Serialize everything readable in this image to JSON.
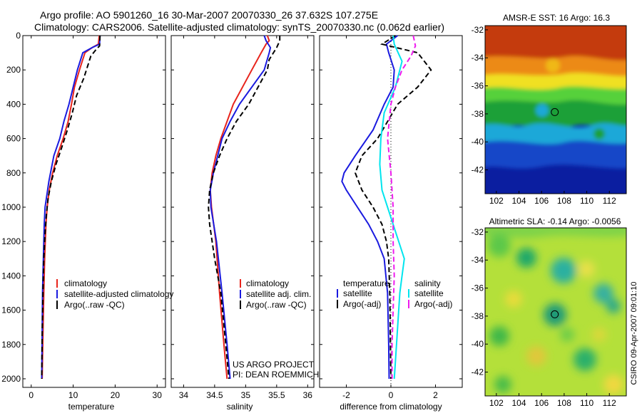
{
  "header": {
    "line1": "Argo profile: AO 5901260_16 30-Mar-2007 20070330_26 37.632S 107.275E",
    "line2": "Climatology: CARS2006. Satellite-adjusted climatology: synTS_20070330.nc (0.062d earlier)"
  },
  "side_caption": "CSIRO 09-Apr-2007 09:01:10",
  "chart_data": [
    {
      "type": "line",
      "xlabel": "temperature",
      "ylabel": "",
      "xlim": [
        -2,
        32
      ],
      "ylim": [
        0,
        2050
      ],
      "y_reversed": true,
      "xticks": [
        0,
        10,
        20,
        30
      ],
      "yticks": [
        0,
        200,
        400,
        600,
        800,
        1000,
        1200,
        1400,
        1600,
        1800,
        2000
      ],
      "legend": [
        "climatology",
        "satellite-adjusted climatology",
        "Argo(..raw -QC)"
      ],
      "series": [
        {
          "name": "climatology",
          "color": "#e8241c",
          "dash": false,
          "x": [
            16.2,
            16.0,
            14.5,
            12.8,
            11.5,
            10.3,
            9.6,
            8.8,
            7.6,
            6.2,
            5.1,
            4.3,
            3.8,
            3.5,
            3.2,
            3.0,
            2.8,
            2.6
          ],
          "y": [
            0,
            50,
            70,
            100,
            200,
            300,
            400,
            500,
            600,
            700,
            800,
            900,
            1000,
            1100,
            1300,
            1500,
            1750,
            2000
          ]
        },
        {
          "name": "satellite-adjusted climatology",
          "color": "#1a1adf",
          "dash": false,
          "x": [
            16.4,
            16.3,
            14.5,
            12.3,
            11.0,
            10.0,
            9.0,
            7.8,
            6.8,
            5.4,
            4.2,
            3.3,
            3.1,
            2.9,
            2.7,
            2.6,
            2.5
          ],
          "y": [
            0,
            50,
            70,
            100,
            200,
            300,
            400,
            500,
            600,
            700,
            850,
            1000,
            1100,
            1300,
            1500,
            1750,
            2000
          ]
        },
        {
          "name": "Argo(..raw -QC)",
          "color": "#000000",
          "dash": true,
          "x": [
            16.4,
            16.3,
            15.5,
            14.2,
            12.5,
            10.8,
            9.8,
            8.6,
            7.3,
            5.9,
            4.8,
            4.0,
            3.6,
            3.3,
            3.0,
            2.8,
            2.6,
            2.5
          ],
          "y": [
            0,
            60,
            80,
            120,
            250,
            350,
            450,
            550,
            650,
            750,
            850,
            950,
            1050,
            1150,
            1300,
            1500,
            1750,
            2000
          ]
        }
      ]
    },
    {
      "type": "line",
      "xlabel": "salinity",
      "ylabel": "",
      "xlim": [
        33.8,
        36.1
      ],
      "ylim": [
        0,
        2050
      ],
      "y_reversed": true,
      "xticks": [
        34,
        34.5,
        35,
        35.5,
        36
      ],
      "legend": [
        "climatology",
        "satellite adj. clim.",
        "Argo(..raw -QC)"
      ],
      "annotations": [
        "US ARGO PROJECT",
        "PI: DEAN ROEMMICH"
      ],
      "series": [
        {
          "name": "climatology",
          "color": "#e8241c",
          "dash": false,
          "x": [
            35.35,
            35.38,
            35.33,
            35.25,
            35.1,
            34.95,
            34.8,
            34.7,
            34.6,
            34.52,
            34.46,
            34.43,
            34.45,
            34.52,
            34.58,
            34.65,
            34.7
          ],
          "y": [
            0,
            30,
            50,
            100,
            200,
            300,
            400,
            500,
            600,
            700,
            800,
            900,
            1000,
            1200,
            1500,
            1800,
            2000
          ]
        },
        {
          "name": "satellite adj. clim.",
          "color": "#1a1adf",
          "dash": false,
          "x": [
            35.3,
            35.33,
            35.4,
            35.38,
            35.3,
            35.1,
            34.9,
            34.75,
            34.62,
            34.55,
            34.48,
            34.43,
            34.44,
            34.53,
            34.62,
            34.7,
            34.75
          ],
          "y": [
            0,
            30,
            70,
            100,
            200,
            300,
            400,
            500,
            600,
            700,
            800,
            900,
            1000,
            1200,
            1500,
            1800,
            2000
          ]
        },
        {
          "name": "Argo(..raw -QC)",
          "color": "#000000",
          "dash": true,
          "x": [
            35.55,
            35.55,
            35.5,
            35.38,
            35.35,
            35.05,
            34.85,
            34.7,
            34.58,
            34.48,
            34.42,
            34.4,
            34.42,
            34.5,
            34.6,
            34.68,
            34.73
          ],
          "y": [
            0,
            30,
            70,
            140,
            200,
            400,
            500,
            600,
            700,
            800,
            900,
            1000,
            1100,
            1300,
            1500,
            1800,
            2000
          ]
        }
      ]
    },
    {
      "type": "line",
      "xlabel": "difference from climatology",
      "ylabel": "",
      "xlim": [
        -3.2,
        3.2
      ],
      "ylim": [
        0,
        2050
      ],
      "y_reversed": true,
      "xticks": [
        -2,
        0,
        2
      ],
      "legend": [
        "temperature",
        "satellite",
        "Argo(-adj)",
        "salinity",
        "satellite",
        "Argo(-adj)"
      ],
      "series": [
        {
          "name": "temperature satellite",
          "color": "#1a1adf",
          "dash": false,
          "x": [
            0.3,
            -0.2,
            -0.1,
            0.15,
            0.1,
            -0.3,
            -0.8,
            -1.6,
            -2.1,
            -2.2,
            -2.0,
            -1.5,
            -1.0,
            -0.6,
            -0.3,
            -0.15,
            -0.1,
            -0.08
          ],
          "y": [
            0,
            50,
            100,
            200,
            300,
            400,
            550,
            700,
            800,
            850,
            900,
            1000,
            1100,
            1200,
            1300,
            1500,
            1800,
            2000
          ]
        },
        {
          "name": "temperature Argo(-adj)",
          "color": "#000000",
          "dash": true,
          "x": [
            0.2,
            -0.4,
            1.2,
            1.8,
            1.2,
            0.3,
            -0.6,
            -1.3,
            -1.6,
            -1.3,
            -0.8,
            -0.4,
            -0.2,
            -0.1,
            -0.05,
            0
          ],
          "y": [
            0,
            50,
            100,
            200,
            300,
            400,
            600,
            700,
            800,
            900,
            1000,
            1100,
            1200,
            1300,
            1500,
            2000
          ]
        },
        {
          "name": "salinity satellite",
          "color": "#00e5ee",
          "dash": false,
          "x": [
            0.1,
            0.15,
            0.5,
            0.2,
            -0.3,
            -0.45,
            -0.5,
            -0.4,
            0.1,
            0.6,
            0.5,
            0.4,
            0.3,
            0.2,
            0.15
          ],
          "y": [
            0,
            50,
            150,
            300,
            450,
            600,
            750,
            900,
            1100,
            1300,
            1400,
            1500,
            1700,
            1900,
            2000
          ]
        },
        {
          "name": "salinity Argo(-adj)",
          "color": "#ee1bee",
          "dash": true,
          "x": [
            1.0,
            1.1,
            0.9,
            0.5,
            0.2,
            0.0,
            -0.15,
            0.0,
            0.1,
            0.1,
            0.15,
            0.1,
            0.05,
            0.05
          ],
          "y": [
            0,
            60,
            120,
            200,
            300,
            400,
            600,
            800,
            1000,
            1200,
            1400,
            1600,
            1800,
            2000
          ]
        }
      ]
    },
    {
      "type": "heatmap",
      "title": "AMSR-E SST: 16 Argo: 16.3",
      "xlim": [
        101,
        113.5
      ],
      "ylim": [
        -43.7,
        -31.7
      ],
      "xticks": [
        102,
        104,
        106,
        108,
        110,
        112
      ],
      "yticks": [
        -32,
        -34,
        -36,
        -38,
        -40,
        -42
      ],
      "marker": {
        "x": 107.275,
        "y": -37.632
      },
      "colormap": "jet"
    },
    {
      "type": "heatmap",
      "title": "Altimetric SLA: -0.14 Argo: -0.0056",
      "xlim": [
        101,
        113.5
      ],
      "ylim": [
        -43.7,
        -31.7
      ],
      "xticks": [
        102,
        104,
        106,
        108,
        110,
        112
      ],
      "yticks": [
        -32,
        -34,
        -36,
        -38,
        -40,
        -42
      ],
      "marker": {
        "x": 107.275,
        "y": -37.632
      },
      "colormap": "jet"
    }
  ]
}
